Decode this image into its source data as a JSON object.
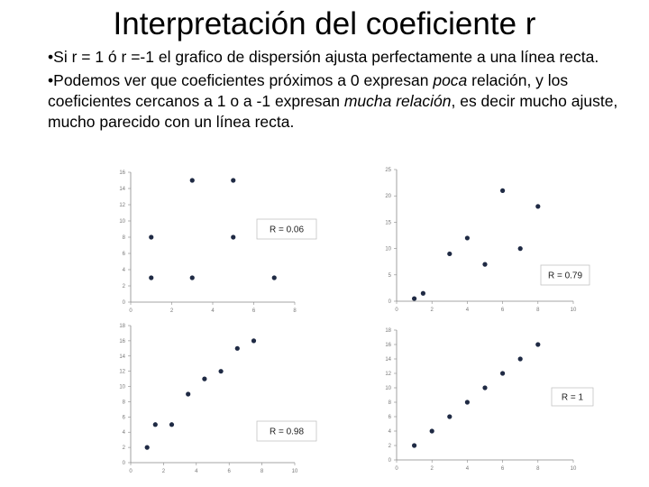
{
  "title": "Interpretación del coeficiente r",
  "bullets": [
    {
      "marker": "•",
      "parts": [
        {
          "text": "Si r = 1 ó r =-1  el grafico de dispersión ajusta perfectamente a una línea recta.",
          "italic": false
        }
      ]
    },
    {
      "marker": "•",
      "parts": [
        {
          "text": "Podemos ver que coeficientes próximos a 0 expresan ",
          "italic": false
        },
        {
          "text": "poca",
          "italic": true
        },
        {
          "text": " relación, y los coeficientes cercanos a 1 o a -1 expresan ",
          "italic": false
        },
        {
          "text": "mucha relación",
          "italic": true
        },
        {
          "text": ", es decir mucho ajuste, mucho parecido con un línea recta.",
          "italic": false
        }
      ]
    }
  ],
  "chart_data": [
    {
      "type": "scatter",
      "annotation": "R = 0.06",
      "xlim": [
        0,
        8
      ],
      "ylim": [
        0,
        16
      ],
      "xticks": [
        "0",
        "2",
        "4",
        "6",
        "8"
      ],
      "yticks": [
        "0",
        "2",
        "4",
        "6",
        "8",
        "10",
        "12",
        "14",
        "16"
      ],
      "points": [
        [
          1,
          3
        ],
        [
          1,
          8
        ],
        [
          3,
          3
        ],
        [
          3,
          15
        ],
        [
          5,
          8
        ],
        [
          5,
          15
        ],
        [
          7,
          3
        ]
      ]
    },
    {
      "type": "scatter",
      "annotation": "R = 0.79",
      "xlim": [
        0,
        10
      ],
      "ylim": [
        0,
        25
      ],
      "xticks": [
        "0",
        "2",
        "4",
        "6",
        "8",
        "10"
      ],
      "yticks": [
        "0",
        "5",
        "10",
        "15",
        "20",
        "25"
      ],
      "points": [
        [
          1,
          0.5
        ],
        [
          1.5,
          1.5
        ],
        [
          3,
          9
        ],
        [
          4,
          12
        ],
        [
          5,
          7
        ],
        [
          6,
          21
        ],
        [
          7,
          10
        ],
        [
          8,
          18
        ]
      ]
    },
    {
      "type": "scatter",
      "annotation": "R = 0.98",
      "xlim": [
        0,
        10
      ],
      "ylim": [
        0,
        18
      ],
      "xticks": [
        "0",
        "2",
        "4",
        "6",
        "8",
        "10"
      ],
      "yticks": [
        "0",
        "2",
        "4",
        "6",
        "8",
        "10",
        "12",
        "14",
        "16",
        "18"
      ],
      "points": [
        [
          1,
          2
        ],
        [
          1.5,
          5
        ],
        [
          2.5,
          5
        ],
        [
          3.5,
          9
        ],
        [
          4.5,
          11
        ],
        [
          5.5,
          12
        ],
        [
          6.5,
          15
        ],
        [
          7.5,
          16
        ]
      ]
    },
    {
      "type": "scatter",
      "annotation": "R = 1",
      "xlim": [
        0,
        10
      ],
      "ylim": [
        0,
        18
      ],
      "xticks": [
        "0",
        "2",
        "4",
        "6",
        "8",
        "10"
      ],
      "yticks": [
        "0",
        "2",
        "4",
        "6",
        "8",
        "10",
        "12",
        "14",
        "16",
        "18"
      ],
      "points": [
        [
          1,
          2
        ],
        [
          2,
          4
        ],
        [
          3,
          6
        ],
        [
          4,
          8
        ],
        [
          5,
          10
        ],
        [
          6,
          12
        ],
        [
          7,
          14
        ],
        [
          8,
          16
        ]
      ]
    }
  ]
}
